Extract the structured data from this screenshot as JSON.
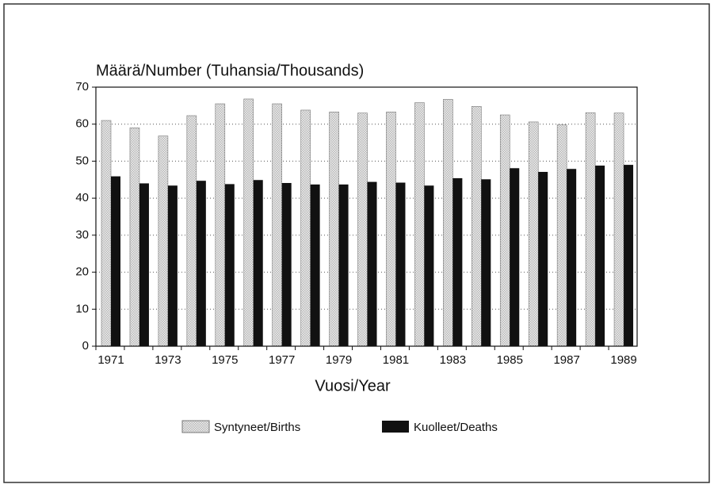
{
  "chart_data": {
    "type": "bar",
    "title": "Määrä/Number (Tuhansia/Thousands)",
    "x_label": "Vuosi/Year",
    "categories": [
      "1971",
      null,
      "1973",
      null,
      "1975",
      null,
      "1977",
      null,
      "1979",
      null,
      "1981",
      null,
      "1983",
      null,
      "1985",
      null,
      "1987",
      null,
      "1989"
    ],
    "series": [
      {
        "name": "Syntyneet/Births",
        "color": "#b8b8b8",
        "pattern": "dots",
        "values": [
          61,
          59,
          56.8,
          62.3,
          65.5,
          66.8,
          65.5,
          63.8,
          63.3,
          63,
          63.3,
          65.8,
          66.7,
          64.8,
          62.5,
          60.6,
          59.8,
          63.1,
          63
        ]
      },
      {
        "name": "Kuolleet/Deaths",
        "color": "#111111",
        "values": [
          45.9,
          44,
          43.4,
          44.7,
          43.8,
          44.9,
          44.1,
          43.7,
          43.7,
          44.4,
          44.2,
          43.4,
          45.4,
          45.1,
          48.1,
          47.1,
          47.9,
          48.8,
          49
        ]
      }
    ],
    "ylim": [
      0,
      70
    ],
    "yticks": [
      0,
      10,
      20,
      30,
      40,
      50,
      60,
      70
    ],
    "grid": true,
    "legend": "bottom"
  }
}
